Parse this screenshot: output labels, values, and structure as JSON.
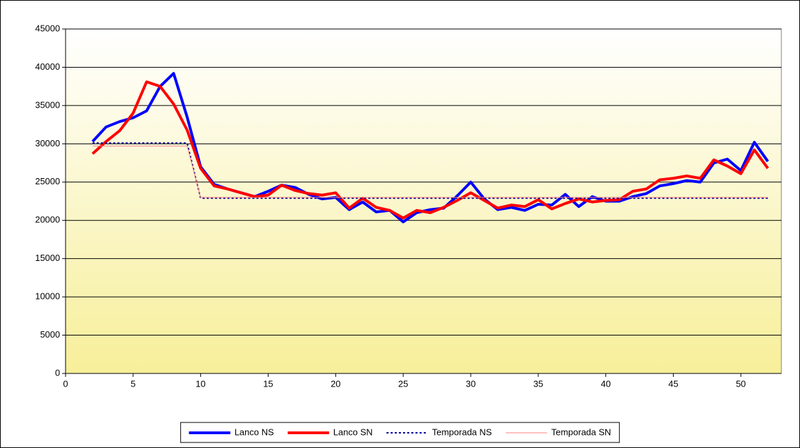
{
  "chart_data": {
    "type": "line",
    "x": [
      2,
      3,
      4,
      5,
      6,
      7,
      8,
      9,
      10,
      11,
      12,
      13,
      14,
      15,
      16,
      17,
      18,
      19,
      20,
      21,
      22,
      23,
      24,
      25,
      26,
      27,
      28,
      29,
      30,
      31,
      32,
      33,
      34,
      35,
      36,
      37,
      38,
      39,
      40,
      41,
      42,
      43,
      44,
      45,
      46,
      47,
      48,
      49,
      50,
      51,
      52
    ],
    "series": [
      {
        "name": "Lanco NS",
        "color": "#0000ff",
        "width": 4,
        "dash": "solid",
        "values": [
          30300,
          32200,
          32900,
          33400,
          34300,
          37500,
          39200,
          33500,
          27000,
          24700,
          24100,
          23600,
          23100,
          23800,
          24600,
          24300,
          23400,
          22800,
          23000,
          21400,
          22400,
          21100,
          21300,
          19800,
          21000,
          21400,
          21600,
          23200,
          25000,
          22800,
          21400,
          21700,
          21300,
          22100,
          22000,
          23400,
          21800,
          23100,
          22500,
          22500,
          23100,
          23500,
          24500,
          24800,
          25200,
          25000,
          27500,
          28000,
          26500,
          30200,
          27700
        ]
      },
      {
        "name": "Lanco SN",
        "color": "#ff0000",
        "width": 4,
        "dash": "solid",
        "values": [
          28700,
          30300,
          31700,
          34000,
          38100,
          37500,
          35200,
          31800,
          26800,
          24500,
          24100,
          23600,
          23100,
          23300,
          24600,
          23900,
          23500,
          23300,
          23600,
          21600,
          22900,
          21700,
          21300,
          20300,
          21300,
          21000,
          21700,
          22600,
          23600,
          22600,
          21600,
          22000,
          21800,
          22700,
          21500,
          22200,
          22800,
          22400,
          22600,
          22700,
          23800,
          24100,
          25300,
          25500,
          25800,
          25500,
          27900,
          27100,
          26100,
          29200,
          26800
        ]
      },
      {
        "name": "Temporada NS",
        "color": "#000099",
        "width": 2,
        "dash": "dotted",
        "values": [
          30100,
          30100,
          30100,
          30100,
          30100,
          30100,
          30100,
          30100,
          22900,
          22900,
          22900,
          22900,
          22900,
          22900,
          22900,
          22900,
          22900,
          22900,
          22900,
          22900,
          22900,
          22900,
          22900,
          22900,
          22900,
          22900,
          22900,
          22900,
          22900,
          22900,
          22900,
          22900,
          22900,
          22900,
          22900,
          22900,
          22900,
          22900,
          22900,
          22900,
          22900,
          22900,
          22900,
          22900,
          22900,
          22900,
          22900,
          22900,
          22900,
          22900,
          22900
        ]
      },
      {
        "name": "Temporada SN",
        "color": "#ff8080",
        "width": 1,
        "dash": "solid",
        "values": [
          29700,
          29700,
          29700,
          29700,
          29700,
          29700,
          29700,
          29700,
          23000,
          23000,
          23000,
          23000,
          23000,
          23000,
          23000,
          23000,
          23000,
          23000,
          23000,
          23000,
          23000,
          23000,
          23000,
          23000,
          23000,
          23000,
          23000,
          23000,
          23000,
          23000,
          23000,
          23000,
          23000,
          23000,
          23000,
          23000,
          23000,
          23000,
          23000,
          23000,
          23000,
          23000,
          23000,
          23000,
          23000,
          23000,
          23000,
          23000,
          23000,
          23000,
          23000
        ]
      }
    ],
    "xlim": [
      0,
      53
    ],
    "xticks": [
      0,
      5,
      10,
      15,
      20,
      25,
      30,
      35,
      40,
      45,
      50
    ],
    "ylim": [
      0,
      45000
    ],
    "yticks": [
      0,
      5000,
      10000,
      15000,
      20000,
      25000,
      30000,
      35000,
      40000,
      45000
    ],
    "grid": true,
    "legend": "bottom"
  }
}
